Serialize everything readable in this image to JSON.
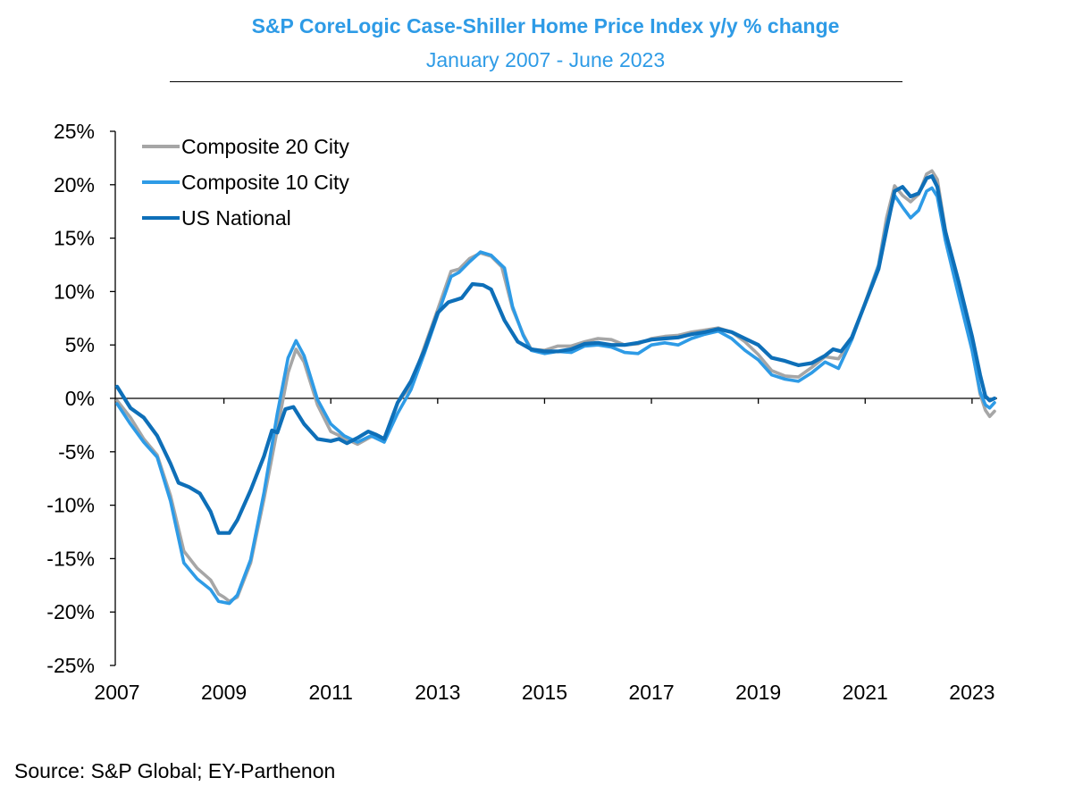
{
  "header": {
    "title": "S&P CoreLogic Case-Shiller Home Price Index y/y %  change",
    "subtitle": "January 2007 - June 2023"
  },
  "footer": {
    "source": "Source: S&P Global; EY-Parthenon"
  },
  "colors": {
    "composite20": "#a6a6a6",
    "composite10": "#2e9be6",
    "national": "#0e6fb8",
    "title": "#2e9be6"
  },
  "chart_data": {
    "type": "line",
    "title": "S&P CoreLogic Case-Shiller Home Price Index y/y %  change",
    "subtitle": "January 2007 - June 2023",
    "xlabel": "",
    "ylabel": "",
    "xlim": [
      2007.0,
      2023.42
    ],
    "ylim": [
      -25,
      25
    ],
    "yticks": [
      -25,
      -20,
      -15,
      -10,
      -5,
      0,
      5,
      10,
      15,
      20,
      25
    ],
    "ytick_labels": [
      "-25%",
      "-20%",
      "-15%",
      "-10%",
      "-5%",
      "0%",
      "5%",
      "10%",
      "15%",
      "20%",
      "25%"
    ],
    "xticks": [
      2007,
      2009,
      2011,
      2013,
      2015,
      2017,
      2019,
      2021,
      2023
    ],
    "xtick_labels": [
      "2007",
      "2009",
      "2011",
      "2013",
      "2015",
      "2017",
      "2019",
      "2021",
      "2023"
    ],
    "grid": false,
    "legend": "top-left",
    "series": [
      {
        "name": "Composite 20 City",
        "color": "#a6a6a6",
        "points": [
          [
            2007.0,
            -0.2
          ],
          [
            2007.25,
            -1.8
          ],
          [
            2007.5,
            -3.8
          ],
          [
            2007.75,
            -5.3
          ],
          [
            2008.0,
            -9.1
          ],
          [
            2008.25,
            -14.3
          ],
          [
            2008.5,
            -15.9
          ],
          [
            2008.75,
            -17.0
          ],
          [
            2008.9,
            -18.3
          ],
          [
            2009.0,
            -18.6
          ],
          [
            2009.1,
            -19.0
          ],
          [
            2009.25,
            -18.6
          ],
          [
            2009.5,
            -15.4
          ],
          [
            2009.75,
            -9.4
          ],
          [
            2010.0,
            -2.9
          ],
          [
            2010.2,
            2.4
          ],
          [
            2010.35,
            4.6
          ],
          [
            2010.5,
            3.4
          ],
          [
            2010.75,
            -0.6
          ],
          [
            2011.0,
            -3.1
          ],
          [
            2011.25,
            -3.7
          ],
          [
            2011.5,
            -4.3
          ],
          [
            2011.75,
            -3.6
          ],
          [
            2011.9,
            -3.5
          ],
          [
            2012.0,
            -3.9
          ],
          [
            2012.25,
            -0.4
          ],
          [
            2012.5,
            1.2
          ],
          [
            2012.75,
            4.8
          ],
          [
            2013.0,
            8.3
          ],
          [
            2013.25,
            11.9
          ],
          [
            2013.4,
            12.1
          ],
          [
            2013.6,
            13.1
          ],
          [
            2013.8,
            13.6
          ],
          [
            2014.0,
            13.3
          ],
          [
            2014.2,
            12.3
          ],
          [
            2014.4,
            8.4
          ],
          [
            2014.6,
            6.0
          ],
          [
            2014.75,
            4.6
          ],
          [
            2015.0,
            4.5
          ],
          [
            2015.25,
            4.9
          ],
          [
            2015.5,
            4.9
          ],
          [
            2015.75,
            5.3
          ],
          [
            2016.0,
            5.6
          ],
          [
            2016.25,
            5.5
          ],
          [
            2016.5,
            5.0
          ],
          [
            2016.75,
            5.1
          ],
          [
            2017.0,
            5.6
          ],
          [
            2017.25,
            5.8
          ],
          [
            2017.5,
            5.9
          ],
          [
            2017.75,
            6.2
          ],
          [
            2018.0,
            6.4
          ],
          [
            2018.25,
            6.6
          ],
          [
            2018.5,
            6.2
          ],
          [
            2018.75,
            5.3
          ],
          [
            2019.0,
            4.1
          ],
          [
            2019.25,
            2.6
          ],
          [
            2019.5,
            2.1
          ],
          [
            2019.75,
            2.0
          ],
          [
            2020.0,
            2.9
          ],
          [
            2020.25,
            3.9
          ],
          [
            2020.5,
            3.7
          ],
          [
            2020.75,
            5.5
          ],
          [
            2021.0,
            9.0
          ],
          [
            2021.25,
            12.5
          ],
          [
            2021.4,
            16.9
          ],
          [
            2021.55,
            19.9
          ],
          [
            2021.7,
            19.0
          ],
          [
            2021.85,
            18.4
          ],
          [
            2022.0,
            19.1
          ],
          [
            2022.15,
            21.0
          ],
          [
            2022.25,
            21.3
          ],
          [
            2022.35,
            20.5
          ],
          [
            2022.5,
            15.8
          ],
          [
            2022.75,
            10.4
          ],
          [
            2023.0,
            4.6
          ],
          [
            2023.15,
            0.4
          ],
          [
            2023.25,
            -1.1
          ],
          [
            2023.33,
            -1.7
          ],
          [
            2023.42,
            -1.2
          ]
        ]
      },
      {
        "name": "Composite 10 City",
        "color": "#2e9be6",
        "points": [
          [
            2007.0,
            -0.5
          ],
          [
            2007.25,
            -2.4
          ],
          [
            2007.5,
            -4.1
          ],
          [
            2007.75,
            -5.5
          ],
          [
            2008.0,
            -9.6
          ],
          [
            2008.25,
            -15.4
          ],
          [
            2008.5,
            -16.9
          ],
          [
            2008.75,
            -17.9
          ],
          [
            2008.9,
            -19.0
          ],
          [
            2009.1,
            -19.2
          ],
          [
            2009.25,
            -18.4
          ],
          [
            2009.5,
            -15.1
          ],
          [
            2009.75,
            -8.8
          ],
          [
            2010.0,
            -1.4
          ],
          [
            2010.2,
            3.8
          ],
          [
            2010.35,
            5.4
          ],
          [
            2010.5,
            4.0
          ],
          [
            2010.75,
            -0.1
          ],
          [
            2011.0,
            -2.4
          ],
          [
            2011.25,
            -3.5
          ],
          [
            2011.5,
            -4.1
          ],
          [
            2011.75,
            -3.5
          ],
          [
            2012.0,
            -4.1
          ],
          [
            2012.25,
            -1.4
          ],
          [
            2012.5,
            0.8
          ],
          [
            2012.75,
            4.2
          ],
          [
            2013.0,
            7.8
          ],
          [
            2013.25,
            11.4
          ],
          [
            2013.4,
            11.8
          ],
          [
            2013.6,
            12.8
          ],
          [
            2013.8,
            13.7
          ],
          [
            2014.0,
            13.4
          ],
          [
            2014.25,
            12.2
          ],
          [
            2014.4,
            8.6
          ],
          [
            2014.6,
            5.9
          ],
          [
            2014.75,
            4.5
          ],
          [
            2015.0,
            4.2
          ],
          [
            2015.25,
            4.4
          ],
          [
            2015.5,
            4.3
          ],
          [
            2015.75,
            4.9
          ],
          [
            2016.0,
            5.0
          ],
          [
            2016.25,
            4.8
          ],
          [
            2016.5,
            4.3
          ],
          [
            2016.75,
            4.2
          ],
          [
            2017.0,
            5.0
          ],
          [
            2017.25,
            5.2
          ],
          [
            2017.5,
            5.0
          ],
          [
            2017.75,
            5.6
          ],
          [
            2018.0,
            6.0
          ],
          [
            2018.25,
            6.3
          ],
          [
            2018.5,
            5.6
          ],
          [
            2018.75,
            4.5
          ],
          [
            2019.0,
            3.6
          ],
          [
            2019.25,
            2.2
          ],
          [
            2019.5,
            1.8
          ],
          [
            2019.75,
            1.6
          ],
          [
            2020.0,
            2.4
          ],
          [
            2020.25,
            3.4
          ],
          [
            2020.5,
            2.8
          ],
          [
            2020.75,
            5.5
          ],
          [
            2021.0,
            8.9
          ],
          [
            2021.25,
            12.4
          ],
          [
            2021.4,
            16.2
          ],
          [
            2021.55,
            19.0
          ],
          [
            2021.7,
            17.9
          ],
          [
            2021.85,
            16.9
          ],
          [
            2022.0,
            17.6
          ],
          [
            2022.15,
            19.4
          ],
          [
            2022.25,
            19.7
          ],
          [
            2022.35,
            18.9
          ],
          [
            2022.5,
            14.8
          ],
          [
            2022.75,
            9.6
          ],
          [
            2023.0,
            4.5
          ],
          [
            2023.15,
            0.6
          ],
          [
            2023.25,
            -0.6
          ],
          [
            2023.33,
            -0.9
          ],
          [
            2023.42,
            -0.4
          ]
        ]
      },
      {
        "name": "US National",
        "color": "#0e6fb8",
        "points": [
          [
            2007.0,
            1.1
          ],
          [
            2007.1,
            0.3
          ],
          [
            2007.25,
            -0.9
          ],
          [
            2007.5,
            -1.8
          ],
          [
            2007.75,
            -3.5
          ],
          [
            2008.0,
            -6.1
          ],
          [
            2008.15,
            -7.9
          ],
          [
            2008.35,
            -8.3
          ],
          [
            2008.55,
            -8.9
          ],
          [
            2008.75,
            -10.6
          ],
          [
            2008.9,
            -12.6
          ],
          [
            2009.1,
            -12.6
          ],
          [
            2009.25,
            -11.4
          ],
          [
            2009.5,
            -8.6
          ],
          [
            2009.75,
            -5.4
          ],
          [
            2009.9,
            -3.0
          ],
          [
            2010.0,
            -3.2
          ],
          [
            2010.15,
            -1.0
          ],
          [
            2010.3,
            -0.8
          ],
          [
            2010.5,
            -2.4
          ],
          [
            2010.75,
            -3.8
          ],
          [
            2011.0,
            -4.0
          ],
          [
            2011.15,
            -3.8
          ],
          [
            2011.3,
            -4.2
          ],
          [
            2011.5,
            -3.7
          ],
          [
            2011.7,
            -3.1
          ],
          [
            2011.85,
            -3.4
          ],
          [
            2012.0,
            -3.8
          ],
          [
            2012.25,
            -0.4
          ],
          [
            2012.5,
            1.6
          ],
          [
            2012.75,
            4.5
          ],
          [
            2013.0,
            8.0
          ],
          [
            2013.2,
            9.0
          ],
          [
            2013.45,
            9.4
          ],
          [
            2013.65,
            10.7
          ],
          [
            2013.85,
            10.6
          ],
          [
            2014.0,
            10.2
          ],
          [
            2014.25,
            7.3
          ],
          [
            2014.5,
            5.3
          ],
          [
            2014.75,
            4.6
          ],
          [
            2015.0,
            4.4
          ],
          [
            2015.25,
            4.4
          ],
          [
            2015.5,
            4.6
          ],
          [
            2015.75,
            5.1
          ],
          [
            2016.0,
            5.2
          ],
          [
            2016.25,
            5.0
          ],
          [
            2016.5,
            5.0
          ],
          [
            2016.75,
            5.2
          ],
          [
            2017.0,
            5.5
          ],
          [
            2017.25,
            5.6
          ],
          [
            2017.5,
            5.7
          ],
          [
            2017.75,
            6.0
          ],
          [
            2018.0,
            6.2
          ],
          [
            2018.25,
            6.5
          ],
          [
            2018.5,
            6.2
          ],
          [
            2018.75,
            5.6
          ],
          [
            2019.0,
            5.0
          ],
          [
            2019.25,
            3.8
          ],
          [
            2019.5,
            3.5
          ],
          [
            2019.75,
            3.1
          ],
          [
            2020.0,
            3.3
          ],
          [
            2020.25,
            4.0
          ],
          [
            2020.4,
            4.6
          ],
          [
            2020.55,
            4.4
          ],
          [
            2020.75,
            5.7
          ],
          [
            2021.0,
            8.9
          ],
          [
            2021.25,
            12.1
          ],
          [
            2021.4,
            15.8
          ],
          [
            2021.55,
            19.4
          ],
          [
            2021.7,
            19.8
          ],
          [
            2021.85,
            18.9
          ],
          [
            2022.0,
            19.2
          ],
          [
            2022.15,
            20.6
          ],
          [
            2022.25,
            20.8
          ],
          [
            2022.35,
            19.8
          ],
          [
            2022.5,
            15.6
          ],
          [
            2022.75,
            10.9
          ],
          [
            2023.0,
            5.8
          ],
          [
            2023.15,
            2.2
          ],
          [
            2023.25,
            0.2
          ],
          [
            2023.33,
            -0.2
          ],
          [
            2023.42,
            0.0
          ]
        ]
      }
    ]
  }
}
